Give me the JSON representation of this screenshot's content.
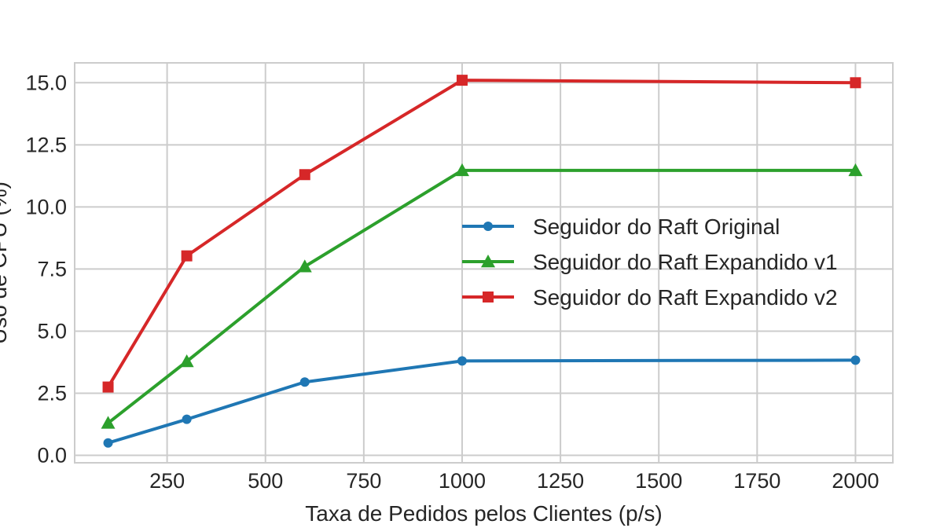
{
  "chart_data": {
    "type": "line",
    "title": "",
    "xlabel": "Taxa de Pedidos pelos Clientes (p/s)",
    "ylabel": "Uso de CPU (%)",
    "x": [
      100,
      300,
      600,
      1000,
      2000
    ],
    "xlim": [
      15,
      2095
    ],
    "ylim": [
      -0.3,
      15.8
    ],
    "xticks": [
      250,
      500,
      750,
      1000,
      1250,
      1500,
      1750,
      2000
    ],
    "xtick_labels": [
      "250",
      "500",
      "750",
      "1000",
      "1250",
      "1500",
      "1750",
      "2000"
    ],
    "yticks": [
      0,
      2.5,
      5,
      7.5,
      10,
      12.5,
      15
    ],
    "ytick_labels": [
      "0.0",
      "2.5",
      "5.0",
      "7.5",
      "10.0",
      "12.5",
      "15.0"
    ],
    "grid": true,
    "legend_position": "center-right",
    "series": [
      {
        "name": "Seguidor do Raft Original",
        "values": [
          0.5,
          1.45,
          2.95,
          3.8,
          3.83
        ],
        "color": "#1f77b4",
        "marker": "circle"
      },
      {
        "name": "Seguidor do Raft Expandido v1",
        "values": [
          1.3,
          3.78,
          7.6,
          11.47,
          11.47
        ],
        "color": "#2ca02c",
        "marker": "triangle"
      },
      {
        "name": "Seguidor do Raft Expandido v2",
        "values": [
          2.75,
          8.03,
          11.3,
          15.1,
          15.0
        ],
        "color": "#d62728",
        "marker": "square"
      }
    ]
  }
}
